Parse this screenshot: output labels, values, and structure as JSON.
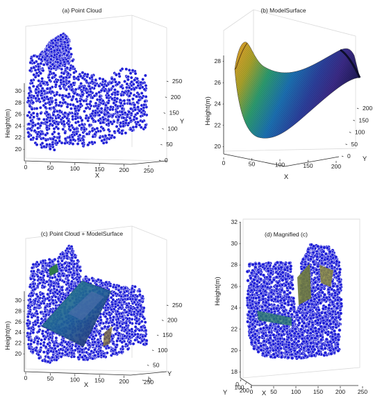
{
  "chart_data": [
    {
      "type": "scatter",
      "panel": "a",
      "title": "(a) Point Cloud",
      "xlabel": "X",
      "ylabel": "Y",
      "zlabel": "Height(m)",
      "xticks": [
        "0",
        "50",
        "100",
        "150",
        "200",
        "250"
      ],
      "yticks": [
        "0",
        "50",
        "100",
        "150",
        "200",
        "250"
      ],
      "zticks": [
        "20",
        "22",
        "24",
        "26",
        "28",
        "30"
      ],
      "xlim": [
        0,
        250
      ],
      "ylim": [
        0,
        250
      ],
      "zlim": [
        19,
        32
      ],
      "marker_color": "#1f1fd6",
      "edge_color": "#ffffff"
    },
    {
      "type": "surface",
      "panel": "b",
      "title": "(b) ModelSurface",
      "xlabel": "X",
      "ylabel": "Y",
      "zlabel": "Height(m)",
      "xticks": [
        "0",
        "50",
        "100",
        "150",
        "200"
      ],
      "yticks": [
        "0",
        "50",
        "100",
        "150",
        "200"
      ],
      "zticks": [
        "20",
        "22",
        "24",
        "26",
        "28"
      ],
      "xlim": [
        0,
        200
      ],
      "ylim": [
        0,
        200
      ],
      "zlim": [
        20,
        28
      ],
      "colormap": "parula-like"
    },
    {
      "type": "scatter",
      "panel": "c",
      "title": "(c) Point Cloud + ModelSurface",
      "xlabel": "X",
      "ylabel": "Y",
      "zlabel": "Height(m)",
      "xticks": [
        "0",
        "50",
        "100",
        "150",
        "200",
        "250"
      ],
      "yticks": [
        "0",
        "50",
        "100",
        "150",
        "200",
        "250"
      ],
      "zticks": [
        "20",
        "22",
        "24",
        "26",
        "28",
        "30"
      ],
      "xlim": [
        0,
        250
      ],
      "ylim": [
        0,
        250
      ],
      "zlim": [
        19,
        32
      ]
    },
    {
      "type": "scatter",
      "panel": "d",
      "title": "(d) Magnified (c)",
      "xlabel": "X",
      "ylabel": "Y",
      "zlabel": "Height(m)",
      "xticks": [
        "0",
        "50",
        "100",
        "150",
        "200",
        "250"
      ],
      "yticks": [
        "0",
        "100",
        "200"
      ],
      "zticks": [
        "18",
        "20",
        "22",
        "24",
        "26",
        "28",
        "30",
        "32"
      ],
      "xlim": [
        0,
        250
      ],
      "ylim": [
        0,
        200
      ],
      "zlim": [
        18,
        32
      ]
    }
  ]
}
